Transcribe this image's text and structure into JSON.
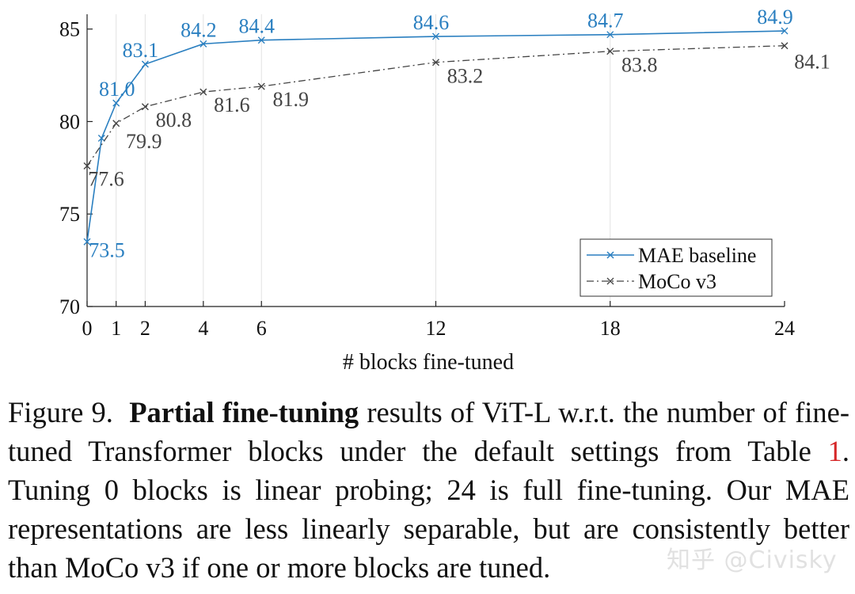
{
  "chart_data": {
    "type": "line",
    "title": "",
    "xlabel": "# blocks fine-tuned",
    "ylabel": "",
    "xlim": [
      0,
      24
    ],
    "ylim": [
      70,
      85.8
    ],
    "xticks": [
      0,
      1,
      2,
      4,
      6,
      12,
      18,
      24
    ],
    "yticks": [
      70,
      75,
      80,
      85
    ],
    "grid": "vertical",
    "legend_position": "bottom-right",
    "series": [
      {
        "name": "MAE baseline",
        "color": "#2a7fc0",
        "style": "solid",
        "marker": "x",
        "x": [
          0,
          0.5,
          1,
          2,
          4,
          6,
          12,
          18,
          24
        ],
        "y": [
          73.5,
          79.1,
          81.0,
          83.1,
          84.2,
          84.4,
          84.6,
          84.7,
          84.9
        ],
        "labels": [
          "73.5",
          "",
          "81.0",
          "83.1",
          "84.2",
          "84.4",
          "84.6",
          "84.7",
          "84.9"
        ]
      },
      {
        "name": "MoCo v3",
        "color": "#444444",
        "style": "dashdot",
        "marker": "x",
        "x": [
          0,
          1,
          2,
          4,
          6,
          12,
          18,
          24
        ],
        "y": [
          77.6,
          79.9,
          80.8,
          81.6,
          81.9,
          83.2,
          83.8,
          84.1
        ],
        "labels": [
          "77.6",
          "79.9",
          "80.8",
          "81.6",
          "81.9",
          "83.2",
          "83.8",
          "84.1"
        ]
      }
    ]
  },
  "caption": {
    "figure_label": "Figure 9.",
    "bold_title": "Partial fine-tuning",
    "text_1": " results of ViT-L w.r.t. the number of fine-tuned Transformer blocks under the default settings from Table ",
    "table_ref": "1",
    "text_2": ". Tuning 0 blocks is linear probing; 24 is full fine-tuning. Our MAE representations are less linearly separable, but are consistently better than MoCo v3 if one or more blocks are tuned."
  },
  "watermark": "知乎 @Civisky"
}
